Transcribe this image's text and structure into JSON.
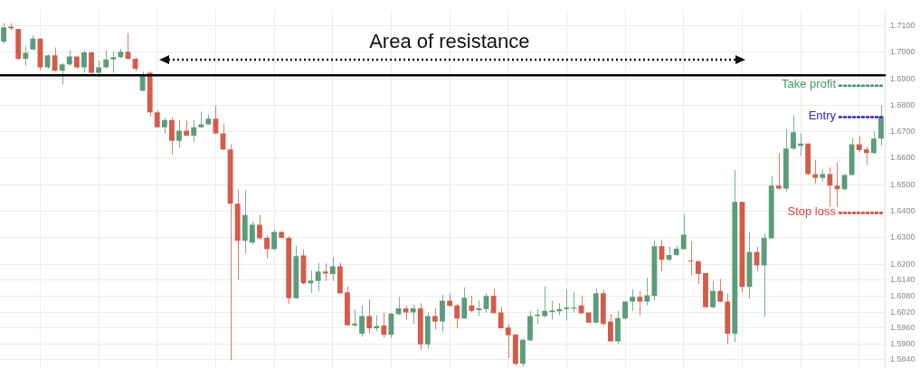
{
  "chart_data": {
    "type": "candlestick",
    "annotations": [
      "Area of resistance"
    ],
    "categories": [
      null,
      null,
      null,
      null,
      null,
      null,
      null,
      null,
      null,
      null,
      null,
      null,
      null,
      null,
      null,
      null,
      null,
      null,
      null,
      null,
      null,
      null,
      null,
      null,
      null,
      null,
      null,
      null,
      null,
      null,
      null,
      null,
      null,
      null,
      null,
      null,
      null,
      null,
      null,
      null,
      null,
      null,
      null,
      null,
      null,
      null,
      null,
      null,
      null,
      null,
      null,
      null,
      null,
      null,
      null,
      null,
      null,
      null,
      null,
      null,
      null,
      null,
      null,
      null,
      null,
      null,
      null,
      null,
      null,
      null,
      null,
      null,
      null,
      null,
      null,
      null,
      null,
      null,
      null,
      null,
      null,
      null,
      null,
      null,
      null,
      null,
      null,
      null,
      null,
      null,
      null,
      null,
      null,
      null,
      null,
      null,
      null,
      null,
      null,
      null,
      null,
      null,
      null,
      null,
      null,
      null,
      null,
      null,
      null,
      null,
      null,
      null,
      null,
      null,
      null,
      null,
      null,
      null,
      null,
      null,
      null
    ],
    "ohlc": [
      [
        1.704,
        1.711,
        1.7034,
        1.7094
      ],
      [
        1.7096,
        1.711,
        1.7083,
        1.709
      ],
      [
        1.7088,
        1.7088,
        1.697,
        1.6975
      ],
      [
        1.6975,
        1.7024,
        1.6948,
        1.6997
      ],
      [
        1.701,
        1.7063,
        1.7008,
        1.7051
      ],
      [
        1.7051,
        1.7051,
        1.6932,
        1.6943
      ],
      [
        1.6943,
        1.6991,
        1.6938,
        1.6988
      ],
      [
        1.6988,
        1.7018,
        1.6927,
        1.693
      ],
      [
        1.693,
        1.6959,
        1.6878,
        1.6954
      ],
      [
        1.6954,
        1.7008,
        1.6948,
        1.6984
      ],
      [
        1.6984,
        1.6986,
        1.6938,
        1.6943
      ],
      [
        1.6943,
        1.7008,
        1.6922,
        1.6999
      ],
      [
        1.6999,
        1.7002,
        1.6916,
        1.6922
      ],
      [
        1.6922,
        1.697,
        1.6905,
        1.6943
      ],
      [
        1.6943,
        1.7008,
        1.6938,
        1.6973
      ],
      [
        1.6973,
        1.7002,
        1.6922,
        1.6981
      ],
      [
        1.6981,
        1.7013,
        1.6977,
        1.7002
      ],
      [
        1.7002,
        1.7072,
        1.6973,
        1.6975
      ],
      [
        1.6975,
        1.6981,
        1.6927,
        1.6938
      ],
      [
        1.6855,
        1.6927,
        1.6852,
        1.6916
      ],
      [
        1.6922,
        1.6927,
        1.6758,
        1.6773
      ],
      [
        1.6773,
        1.6782,
        1.6715,
        1.6717
      ],
      [
        1.6717,
        1.6752,
        1.6694,
        1.6744
      ],
      [
        1.6744,
        1.6755,
        1.6615,
        1.6666
      ],
      [
        1.6666,
        1.6744,
        1.664,
        1.6704
      ],
      [
        1.6704,
        1.6744,
        1.6683,
        1.6685
      ],
      [
        1.6685,
        1.6744,
        1.6661,
        1.6717
      ],
      [
        1.6717,
        1.6776,
        1.6715,
        1.6728
      ],
      [
        1.6728,
        1.6766,
        1.6726,
        1.6749
      ],
      [
        1.6749,
        1.6798,
        1.669,
        1.6694
      ],
      [
        1.6694,
        1.6728,
        1.6631,
        1.6633
      ],
      [
        1.6633,
        1.6653,
        1.5838,
        1.6429
      ],
      [
        1.6429,
        1.6481,
        1.6142,
        1.6289
      ],
      [
        1.6289,
        1.6478,
        1.6239,
        1.6386
      ],
      [
        1.6282,
        1.6362,
        1.6276,
        1.6349
      ],
      [
        1.6349,
        1.6386,
        1.6292,
        1.6298
      ],
      [
        1.63,
        1.6309,
        1.6223,
        1.6257
      ],
      [
        1.6257,
        1.633,
        1.6253,
        1.6322
      ],
      [
        1.6322,
        1.6325,
        1.6298,
        1.63
      ],
      [
        1.63,
        1.6306,
        1.6051,
        1.6072
      ],
      [
        1.6072,
        1.6271,
        1.607,
        1.6231
      ],
      [
        1.6233,
        1.6255,
        1.6124,
        1.6128
      ],
      [
        1.6128,
        1.6177,
        1.6091,
        1.6139
      ],
      [
        1.6137,
        1.6206,
        1.6099,
        1.6173
      ],
      [
        1.6173,
        1.6203,
        1.6137,
        1.6165
      ],
      [
        1.6163,
        1.6228,
        1.6137,
        1.6192
      ],
      [
        1.6192,
        1.6206,
        1.6088,
        1.6091
      ],
      [
        1.6094,
        1.6117,
        1.597,
        1.597
      ],
      [
        1.597,
        1.6029,
        1.5965,
        1.5977
      ],
      [
        1.5938,
        1.6045,
        1.5927,
        1.6005
      ],
      [
        1.6005,
        1.6067,
        1.5938,
        1.5959
      ],
      [
        1.5959,
        1.6008,
        1.5948,
        1.5967
      ],
      [
        1.5969,
        1.6016,
        1.5924,
        1.5934
      ],
      [
        1.5934,
        1.6016,
        1.5921,
        1.6014
      ],
      [
        1.6012,
        1.6077,
        1.6008,
        1.6034
      ],
      [
        1.6034,
        1.6045,
        1.5991,
        1.6018
      ],
      [
        1.6018,
        1.6048,
        1.5975,
        1.6034
      ],
      [
        1.6034,
        1.6053,
        1.5878,
        1.5898
      ],
      [
        1.5898,
        1.6018,
        1.5881,
        1.6005
      ],
      [
        1.6005,
        1.6034,
        1.5954,
        1.5984
      ],
      [
        1.5984,
        1.6085,
        1.5943,
        1.6063
      ],
      [
        1.6063,
        1.6091,
        1.604,
        1.6043
      ],
      [
        1.6045,
        1.6051,
        1.5959,
        1.5995
      ],
      [
        1.5995,
        1.6113,
        1.5995,
        1.6074
      ],
      [
        1.6045,
        1.6081,
        1.602,
        1.6024
      ],
      [
        1.6027,
        1.6063,
        1.6005,
        1.6034
      ],
      [
        1.6031,
        1.6091,
        1.6018,
        1.6081
      ],
      [
        1.6081,
        1.6106,
        1.6016,
        1.6016
      ],
      [
        1.6018,
        1.604,
        1.5959,
        1.5959
      ],
      [
        1.5961,
        1.5975,
        1.5846,
        1.5932
      ],
      [
        1.5935,
        1.5937,
        1.5816,
        1.5825
      ],
      [
        1.5825,
        1.5921,
        1.5814,
        1.5915
      ],
      [
        1.5913,
        1.6024,
        1.5911,
        1.6005
      ],
      [
        1.6005,
        1.6031,
        1.5975,
        1.601
      ],
      [
        1.6005,
        1.6117,
        1.5999,
        1.6024
      ],
      [
        1.602,
        1.6063,
        1.5991,
        1.6026
      ],
      [
        1.6023,
        1.6053,
        1.6008,
        1.6031
      ],
      [
        1.6031,
        1.6104,
        1.5988,
        1.6037
      ],
      [
        1.6033,
        1.6096,
        1.6018,
        1.6037
      ],
      [
        1.6045,
        1.6081,
        1.6013,
        1.6015
      ],
      [
        1.6018,
        1.6018,
        1.598,
        1.598
      ],
      [
        1.598,
        1.611,
        1.5977,
        1.6091
      ],
      [
        1.6091,
        1.6104,
        1.597,
        1.5975
      ],
      [
        1.5984,
        1.6013,
        1.5909,
        1.5909
      ],
      [
        1.5909,
        1.6024,
        1.59,
        1.5997
      ],
      [
        1.5995,
        1.6061,
        1.5991,
        1.6059
      ],
      [
        1.6059,
        1.6106,
        1.6024,
        1.6077
      ],
      [
        1.6077,
        1.6099,
        1.6008,
        1.6059
      ],
      [
        1.6059,
        1.6149,
        1.6045,
        1.6083
      ],
      [
        1.6081,
        1.6292,
        1.6063,
        1.6268
      ],
      [
        1.6268,
        1.6292,
        1.6174,
        1.6217
      ],
      [
        1.6217,
        1.6268,
        1.6212,
        1.6235
      ],
      [
        1.6235,
        1.6271,
        1.6231,
        1.6259
      ],
      [
        1.6257,
        1.6389,
        1.6255,
        1.6312
      ],
      [
        1.6214,
        1.6287,
        1.6158,
        1.621
      ],
      [
        1.6212,
        1.6212,
        1.6126,
        1.6163
      ],
      [
        1.6167,
        1.6167,
        1.6038,
        1.6038
      ],
      [
        1.6038,
        1.6137,
        1.6034,
        1.6099
      ],
      [
        1.6099,
        1.6145,
        1.6056,
        1.6059
      ],
      [
        1.6059,
        1.6091,
        1.5898,
        1.5938
      ],
      [
        1.5938,
        1.6556,
        1.5905,
        1.6435
      ],
      [
        1.6435,
        1.6435,
        1.6094,
        1.6115
      ],
      [
        1.6115,
        1.6322,
        1.6072,
        1.6246
      ],
      [
        1.6246,
        1.6266,
        1.6174,
        1.6196
      ],
      [
        1.6196,
        1.6317,
        1.6002,
        1.63
      ],
      [
        1.6298,
        1.6534,
        1.6296,
        1.6497
      ],
      [
        1.6497,
        1.6618,
        1.6483,
        1.6486
      ],
      [
        1.6486,
        1.6709,
        1.6475,
        1.6637
      ],
      [
        1.6637,
        1.6762,
        1.6631,
        1.6698
      ],
      [
        1.6647,
        1.6694,
        1.661,
        1.6655
      ],
      [
        1.6655,
        1.6655,
        1.6537,
        1.654
      ],
      [
        1.654,
        1.6594,
        1.6504,
        1.6526
      ],
      [
        1.6526,
        1.6558,
        1.6511,
        1.654
      ],
      [
        1.654,
        1.6565,
        1.6416,
        1.6497
      ],
      [
        1.6497,
        1.6583,
        1.6416,
        1.6483
      ],
      [
        1.6483,
        1.654,
        1.6478,
        1.6537
      ],
      [
        1.6537,
        1.6676,
        1.6534,
        1.6653
      ],
      [
        1.6653,
        1.6683,
        1.6623,
        1.6631
      ],
      [
        1.6633,
        1.6644,
        1.6575,
        1.662
      ],
      [
        1.662,
        1.6701,
        1.6615,
        1.6674
      ],
      [
        1.6674,
        1.6798,
        1.6647,
        1.6755
      ]
    ],
    "colors": [
      "#5b9c7a",
      "#d65b4a",
      "#d65b4a",
      "#5b9c7a",
      "#5b9c7a",
      "#d65b4a",
      "#5b9c7a",
      "#d65b4a",
      "#5b9c7a",
      "#5b9c7a",
      "#d65b4a",
      "#5b9c7a",
      "#d65b4a",
      "#5b9c7a",
      "#5b9c7a",
      "#5b9c7a",
      "#5b9c7a",
      "#d65b4a",
      "#d65b4a",
      "#5b9c7a",
      "#d65b4a",
      "#d65b4a",
      "#5b9c7a",
      "#d65b4a",
      "#5b9c7a",
      "#d65b4a",
      "#5b9c7a",
      "#5b9c7a",
      "#5b9c7a",
      "#d65b4a",
      "#d65b4a",
      "#d65b4a",
      "#d65b4a",
      "#5b9c7a",
      "#5b9c7a",
      "#d65b4a",
      "#d65b4a",
      "#5b9c7a",
      "#d65b4a",
      "#d65b4a",
      "#5b9c7a",
      "#d65b4a",
      "#5b9c7a",
      "#5b9c7a",
      "#d65b4a",
      "#5b9c7a",
      "#d65b4a",
      "#d65b4a",
      "#5b9c7a",
      "#5b9c7a",
      "#d65b4a",
      "#5b9c7a",
      "#d65b4a",
      "#5b9c7a",
      "#5b9c7a",
      "#d65b4a",
      "#5b9c7a",
      "#d65b4a",
      "#5b9c7a",
      "#d65b4a",
      "#5b9c7a",
      "#d65b4a",
      "#d65b4a",
      "#5b9c7a",
      "#d65b4a",
      "#5b9c7a",
      "#5b9c7a",
      "#d65b4a",
      "#d65b4a",
      "#d65b4a",
      "#d65b4a",
      "#5b9c7a",
      "#5b9c7a",
      "#5b9c7a",
      "#5b9c7a",
      "#5b9c7a",
      "#5b9c7a",
      "#5b9c7a",
      "#5b9c7a",
      "#d65b4a",
      "#d65b4a",
      "#5b9c7a",
      "#d65b4a",
      "#d65b4a",
      "#5b9c7a",
      "#5b9c7a",
      "#5b9c7a",
      "#d65b4a",
      "#5b9c7a",
      "#5b9c7a",
      "#d65b4a",
      "#5b9c7a",
      "#5b9c7a",
      "#5b9c7a",
      "#d65b4a",
      "#d65b4a",
      "#d65b4a",
      "#5b9c7a",
      "#d65b4a",
      "#d65b4a",
      "#5b9c7a",
      "#d65b4a",
      "#5b9c7a",
      "#d65b4a",
      "#5b9c7a",
      "#5b9c7a",
      "#d65b4a",
      "#5b9c7a",
      "#5b9c7a",
      "#5b9c7a",
      "#d65b4a",
      "#d65b4a",
      "#5b9c7a",
      "#d65b4a",
      "#d65b4a",
      "#5b9c7a",
      "#5b9c7a",
      "#d65b4a",
      "#d65b4a",
      "#5b9c7a",
      "#5b9c7a"
    ],
    "ylim": [
      1.581,
      1.7158
    ],
    "yticks": [
      {
        "value": 1.71,
        "label": "1.7100"
      },
      {
        "value": 1.7,
        "label": "1.7000"
      },
      {
        "value": 1.69,
        "label": "1.6900"
      },
      {
        "value": 1.68,
        "label": "1.6800"
      },
      {
        "value": 1.67,
        "label": "1.6700"
      },
      {
        "value": 1.66,
        "label": "1.6600"
      },
      {
        "value": 1.65,
        "label": "1.6500"
      },
      {
        "value": 1.64,
        "label": "1.6400"
      },
      {
        "value": 1.63,
        "label": "1.6300"
      },
      {
        "value": 1.62,
        "label": "1.6200"
      },
      {
        "value": 1.614,
        "label": "1.6140"
      },
      {
        "value": 1.608,
        "label": "1.6080"
      },
      {
        "value": 1.602,
        "label": "1.6020"
      },
      {
        "value": 1.596,
        "label": "1.5960"
      },
      {
        "value": 1.59,
        "label": "1.5900"
      },
      {
        "value": 1.584,
        "label": "1.5840"
      }
    ],
    "grid": true,
    "tick_labels": "y",
    "ref_lines": [
      {
        "axis": "y",
        "value": 1.6913,
        "color": "#000000",
        "line_style": "solid"
      },
      {
        "axis": "y",
        "value": 1.6874,
        "label": "Take profit",
        "color": "#3f9a5c",
        "line_style": "dotted"
      },
      {
        "axis": "y",
        "value": 1.6755,
        "label": "Entry",
        "color": "#2a2acc",
        "line_style": "dotted"
      },
      {
        "axis": "y",
        "value": 1.6394,
        "label": "Stop loss",
        "color": "#d9443a",
        "line_style": "dotted"
      }
    ]
  }
}
